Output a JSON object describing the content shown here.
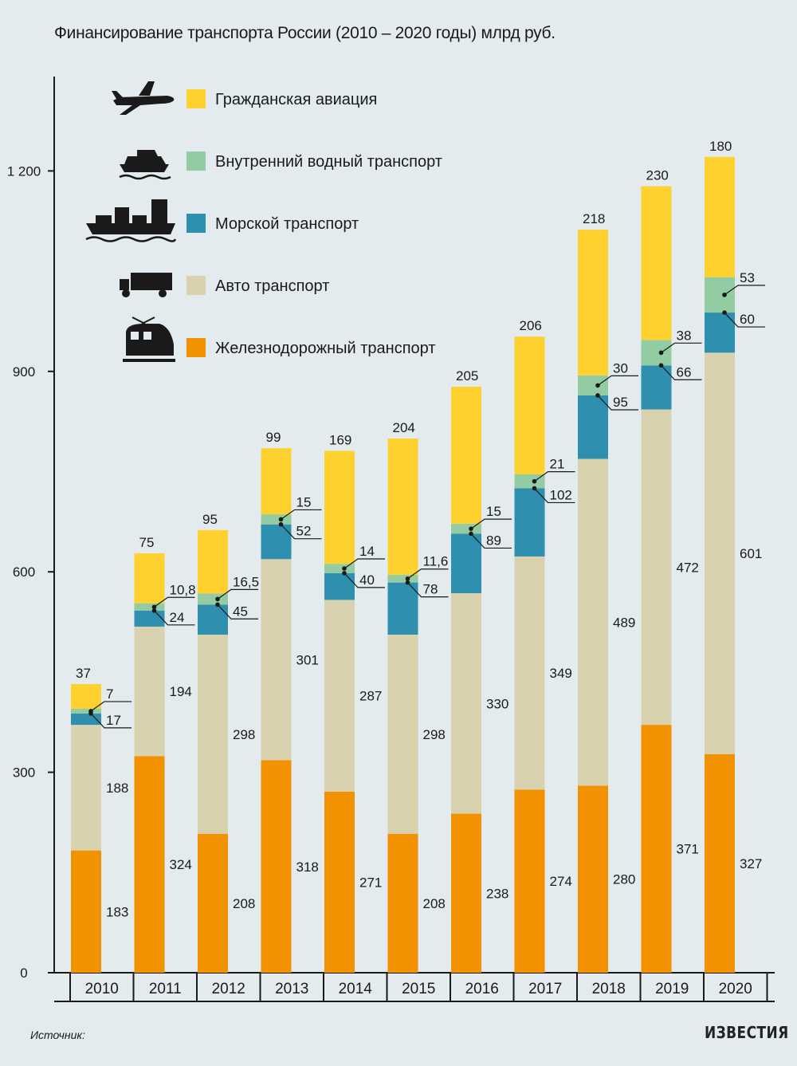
{
  "title": "Финансирование транспорта России (2010 – 2020 годы) млрд руб.",
  "source_label": "Источник:",
  "logo_text": "ИЗВЕСТИЯ",
  "chart_data": {
    "type": "bar",
    "stacked": true,
    "title": "Финансирование транспорта России (2010 – 2020 годы) млрд руб.",
    "categories": [
      "2010",
      "2011",
      "2012",
      "2013",
      "2014",
      "2015",
      "2016",
      "2017",
      "2018",
      "2019",
      "2020"
    ],
    "ylim": [
      0,
      1300
    ],
    "yticks": [
      0,
      300,
      600,
      900,
      1200
    ],
    "ytick_labels": [
      "0",
      "300",
      "600",
      "900",
      "1 200"
    ],
    "legend_position": "top-left",
    "grid": false,
    "series": [
      {
        "name": "Железнодорожный транспорт",
        "color": "#f39200",
        "icon": "train-icon",
        "values": [
          183,
          324,
          208,
          318,
          271,
          208,
          238,
          274,
          280,
          371,
          327
        ],
        "labels": [
          "183",
          "324",
          "208",
          "318",
          "271",
          "208",
          "238",
          "274",
          "280",
          "371",
          "327"
        ]
      },
      {
        "name": "Авто транспорт",
        "color": "#d8d2ae",
        "icon": "truck-icon",
        "values": [
          188,
          194,
          298,
          301,
          287,
          298,
          330,
          349,
          489,
          472,
          601
        ],
        "labels": [
          "188",
          "194",
          "298",
          "301",
          "287",
          "298",
          "330",
          "349",
          "489",
          "472",
          "601"
        ]
      },
      {
        "name": "Морской транспорт",
        "color": "#2e8fae",
        "icon": "cargo-ship-icon",
        "values": [
          17,
          24,
          45,
          52,
          40,
          78,
          89,
          102,
          95,
          66,
          60
        ],
        "labels": [
          "17",
          "24",
          "45",
          "52",
          "40",
          "78",
          "89",
          "102",
          "95",
          "66",
          "60"
        ]
      },
      {
        "name": "Внутренний водный транспорт",
        "color": "#93cba3",
        "icon": "river-boat-icon",
        "values": [
          7,
          10.8,
          16.5,
          15,
          14,
          11.6,
          15,
          21,
          30,
          38,
          53
        ],
        "labels": [
          "7",
          "10,8",
          "16,5",
          "15",
          "14",
          "11,6",
          "15",
          "21",
          "30",
          "38",
          "53"
        ]
      },
      {
        "name": "Гражданская авиация",
        "color": "#fed12e",
        "icon": "airplane-icon",
        "values": [
          37,
          75,
          95,
          99,
          169,
          204,
          205,
          206,
          218,
          230,
          180
        ],
        "labels": [
          "37",
          "75",
          "95",
          "99",
          "169",
          "204",
          "205",
          "206",
          "218",
          "230",
          "180"
        ]
      }
    ]
  },
  "legend_order": [
    4,
    3,
    2,
    1,
    0
  ]
}
